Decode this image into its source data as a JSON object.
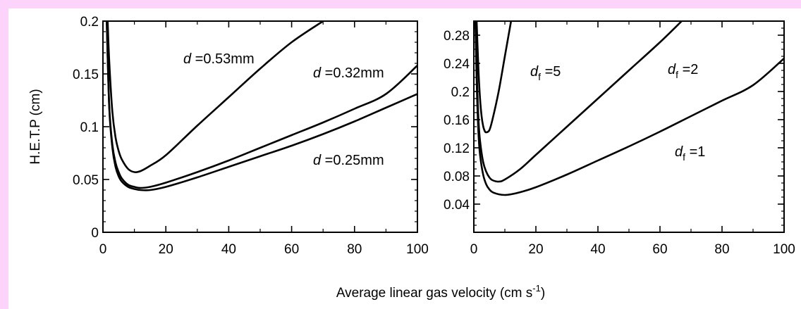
{
  "figure": {
    "shared_xlabel": "Average linear gas velocity (cm s",
    "shared_xlabel_sup": "-1",
    "shared_xlabel_end": ")"
  },
  "chart_data": [
    {
      "type": "line",
      "title": "",
      "xlabel": "",
      "ylabel": "H.E.T.P (cm)",
      "xlim": [
        0,
        100
      ],
      "ylim": [
        0,
        0.2
      ],
      "xticks": [
        0,
        20,
        40,
        60,
        80,
        100
      ],
      "yticks": [
        0,
        0.05,
        0.1,
        0.15,
        0.2
      ],
      "xtick_labels": [
        "0",
        "20",
        "40",
        "60",
        "80",
        "100"
      ],
      "ytick_labels": [
        "0",
        "0.05",
        "0.1",
        "0.15",
        "0.2"
      ],
      "grid": false,
      "series": [
        {
          "name": "d =0.53mm",
          "label_var": "d",
          "label_rest": " =0.53mm",
          "x": [
            1.5,
            2,
            3,
            4,
            5,
            6,
            8,
            10,
            12,
            15,
            20,
            30,
            40,
            50,
            60,
            70
          ],
          "y": [
            0.2,
            0.162,
            0.114,
            0.09,
            0.077,
            0.069,
            0.06,
            0.057,
            0.058,
            0.063,
            0.073,
            0.101,
            0.128,
            0.155,
            0.18,
            0.2
          ]
        },
        {
          "name": "d =0.32mm",
          "label_var": "d",
          "label_rest": " =0.32mm",
          "x": [
            1.2,
            2,
            3,
            4,
            5,
            6,
            8,
            10,
            12,
            15,
            20,
            30,
            40,
            50,
            60,
            70,
            80,
            90,
            100
          ],
          "y": [
            0.2,
            0.12,
            0.083,
            0.066,
            0.057,
            0.051,
            0.045,
            0.043,
            0.042,
            0.043,
            0.047,
            0.057,
            0.068,
            0.08,
            0.092,
            0.104,
            0.117,
            0.131,
            0.158
          ]
        },
        {
          "name": "d =0.25mm",
          "label_var": "d",
          "label_rest": " =0.25mm",
          "x": [
            1.2,
            2,
            3,
            4,
            5,
            6,
            8,
            10,
            12,
            15,
            20,
            30,
            40,
            50,
            60,
            70,
            80,
            90,
            100
          ],
          "y": [
            0.2,
            0.118,
            0.08,
            0.062,
            0.053,
            0.048,
            0.043,
            0.041,
            0.04,
            0.04,
            0.043,
            0.052,
            0.062,
            0.072,
            0.082,
            0.093,
            0.105,
            0.118,
            0.131
          ]
        }
      ]
    },
    {
      "type": "line",
      "title": "",
      "xlabel": "",
      "ylabel": "",
      "xlim": [
        0,
        100
      ],
      "ylim": [
        0,
        0.3
      ],
      "xticks": [
        0,
        20,
        40,
        60,
        80,
        100
      ],
      "yticks": [
        0.04,
        0.08,
        0.12,
        0.16,
        0.2,
        0.24,
        0.28
      ],
      "xtick_labels": [
        "0",
        "20",
        "40",
        "60",
        "80",
        "100"
      ],
      "ytick_labels": [
        "0.04",
        "0.08",
        "0.12",
        "0.16",
        "0.2",
        "0.24",
        "0.28"
      ],
      "grid": false,
      "series": [
        {
          "name": "df =5",
          "label_var": "d",
          "label_sub": "f",
          "label_rest": " =5",
          "x": [
            0.9,
            1.5,
            2,
            2.5,
            3,
            3.5,
            4,
            5,
            6,
            8,
            10,
            12
          ],
          "y": [
            0.3,
            0.23,
            0.19,
            0.165,
            0.151,
            0.144,
            0.142,
            0.145,
            0.16,
            0.2,
            0.25,
            0.3
          ]
        },
        {
          "name": "df =2",
          "label_var": "d",
          "label_sub": "f",
          "label_rest": " =2",
          "x": [
            0.6,
            1,
            1.5,
            2,
            3,
            4,
            5,
            6,
            8,
            10,
            15,
            20,
            30,
            40,
            50,
            60,
            67
          ],
          "y": [
            0.3,
            0.22,
            0.16,
            0.13,
            0.1,
            0.086,
            0.078,
            0.074,
            0.072,
            0.075,
            0.09,
            0.11,
            0.15,
            0.19,
            0.23,
            0.27,
            0.3
          ]
        },
        {
          "name": "df =1",
          "label_var": "d",
          "label_sub": "f",
          "label_rest": " =1",
          "x": [
            0.5,
            1,
            1.5,
            2,
            3,
            4,
            5,
            6,
            8,
            10,
            12,
            15,
            20,
            30,
            40,
            50,
            60,
            70,
            80,
            90,
            100
          ],
          "y": [
            0.3,
            0.2,
            0.14,
            0.11,
            0.082,
            0.068,
            0.061,
            0.057,
            0.054,
            0.053,
            0.054,
            0.057,
            0.064,
            0.082,
            0.102,
            0.122,
            0.143,
            0.165,
            0.187,
            0.209,
            0.247
          ]
        }
      ]
    }
  ]
}
